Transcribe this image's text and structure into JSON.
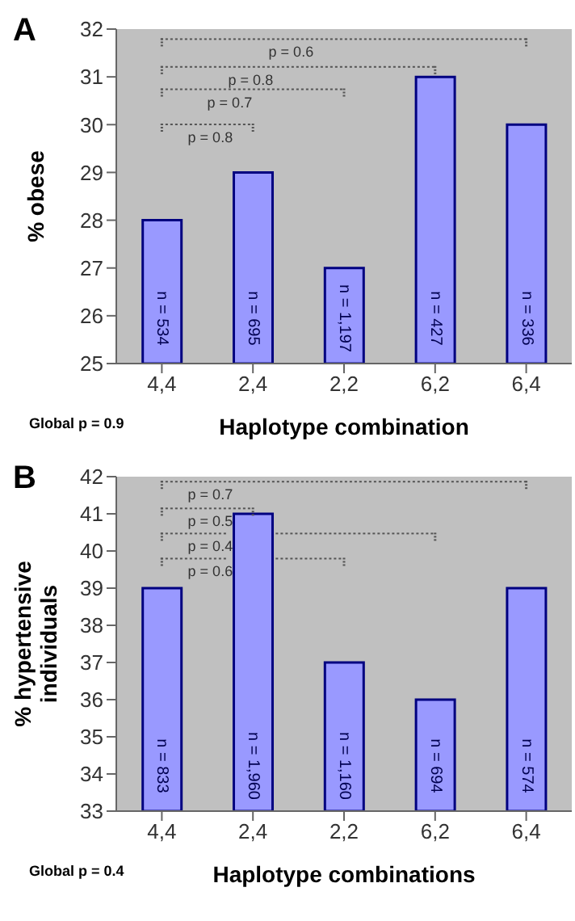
{
  "chart_data": [
    {
      "type": "bar",
      "title": "A",
      "xlabel": "Haplotype combination",
      "ylabel": "% obese",
      "categories": [
        "4,4",
        "2,4",
        "2,2",
        "6,2",
        "6,4"
      ],
      "values": [
        28,
        29,
        27,
        31,
        30
      ],
      "color": "#9999ff",
      "ylim": [
        25,
        32
      ],
      "yticks": [
        25,
        26,
        27,
        28,
        29,
        30,
        31,
        32
      ],
      "legend": false,
      "grid": false,
      "annotations": [
        "p = 0.8",
        "p = 0.7",
        "p = 0.8",
        "p = 0.6",
        "n = 534",
        "n = 695",
        "n = 1,197",
        "n = 427",
        "n = 336",
        "Global p = 0.9"
      ]
    },
    {
      "type": "bar",
      "title": "B",
      "xlabel": "Haplotype combinations",
      "ylabel": "% hypertensive individuals",
      "categories": [
        "4,4",
        "2,4",
        "2,2",
        "6,2",
        "6,4"
      ],
      "values": [
        39,
        41,
        37,
        36,
        39
      ],
      "color": "#9999ff",
      "ylim": [
        33,
        42
      ],
      "yticks": [
        33,
        34,
        35,
        36,
        37,
        38,
        39,
        40,
        41,
        42
      ],
      "legend": false,
      "grid": false,
      "annotations": [
        "p = 0.7",
        "p = 0.5",
        "p = 0.4",
        "p = 0.6",
        "n = 833",
        "n = 1,960",
        "n = 1,160",
        "n = 694",
        "n = 574",
        "Global p = 0.4"
      ]
    }
  ]
}
